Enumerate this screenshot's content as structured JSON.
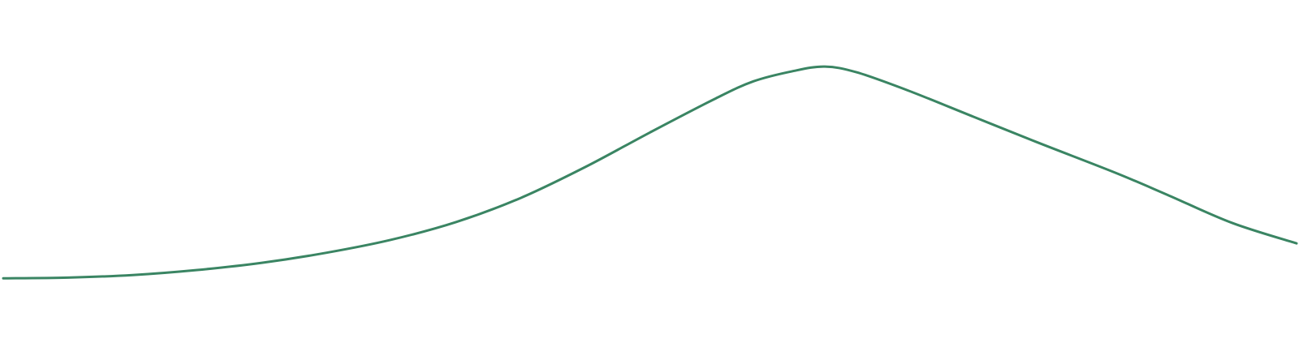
{
  "chart_data": {
    "type": "line",
    "title": "",
    "xlabel": "",
    "ylabel": "",
    "grid": false,
    "legend": "none",
    "xlim": [
      0,
      100
    ],
    "ylim": [
      0,
      100
    ],
    "series": [
      {
        "color": "#3a8563",
        "points": [
          [
            0,
            22.7
          ],
          [
            5,
            22.9
          ],
          [
            10,
            23.6
          ],
          [
            15,
            25.0
          ],
          [
            20,
            27.0
          ],
          [
            25,
            29.8
          ],
          [
            30,
            33.4
          ],
          [
            35,
            38.3
          ],
          [
            40,
            45.0
          ],
          [
            45,
            53.6
          ],
          [
            50,
            63.2
          ],
          [
            55,
            72.5
          ],
          [
            58,
            77.4
          ],
          [
            61,
            80.2
          ],
          [
            63.5,
            81.5
          ],
          [
            66,
            79.9
          ],
          [
            70,
            74.8
          ],
          [
            75,
            67.6
          ],
          [
            80,
            60.4
          ],
          [
            86,
            52.0
          ],
          [
            90,
            45.9
          ],
          [
            95,
            38.1
          ],
          [
            100,
            32.4
          ]
        ]
      }
    ]
  }
}
